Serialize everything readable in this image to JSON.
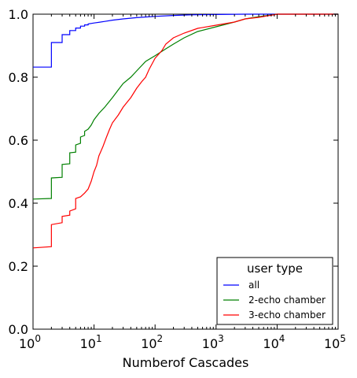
{
  "chart_data": {
    "type": "line",
    "step": true,
    "xscale": "log",
    "xlim": [
      1,
      100000
    ],
    "ylim": [
      0.0,
      1.0
    ],
    "xlabel": "Numberof Cascades",
    "ylabel": "",
    "grid": false,
    "x_ticks": [
      {
        "value": 1,
        "base": "10",
        "exp": "0"
      },
      {
        "value": 10,
        "base": "10",
        "exp": "1"
      },
      {
        "value": 100,
        "base": "10",
        "exp": "2"
      },
      {
        "value": 1000,
        "base": "10",
        "exp": "3"
      },
      {
        "value": 10000,
        "base": "10",
        "exp": "4"
      },
      {
        "value": 100000,
        "base": "10",
        "exp": "5"
      }
    ],
    "y_ticks": [
      {
        "value": 0.0,
        "label": "0.0"
      },
      {
        "value": 0.2,
        "label": "0.2"
      },
      {
        "value": 0.4,
        "label": "0.4"
      },
      {
        "value": 0.6,
        "label": "0.6"
      },
      {
        "value": 0.8,
        "label": "0.8"
      },
      {
        "value": 1.0,
        "label": "1.0"
      }
    ],
    "legend": {
      "title": "user type",
      "position": "lower right"
    },
    "series": [
      {
        "name": "all",
        "color": "#0000ff",
        "points": [
          [
            1,
            0.832
          ],
          [
            2,
            0.832
          ],
          [
            2,
            0.91
          ],
          [
            3,
            0.91
          ],
          [
            3,
            0.935
          ],
          [
            4,
            0.935
          ],
          [
            4,
            0.948
          ],
          [
            5,
            0.948
          ],
          [
            5,
            0.956
          ],
          [
            6,
            0.956
          ],
          [
            6,
            0.962
          ],
          [
            7,
            0.962
          ],
          [
            7,
            0.966
          ],
          [
            8,
            0.966
          ],
          [
            8,
            0.969
          ],
          [
            10,
            0.972
          ],
          [
            15,
            0.977
          ],
          [
            20,
            0.981
          ],
          [
            30,
            0.985
          ],
          [
            50,
            0.989
          ],
          [
            100,
            0.993
          ],
          [
            200,
            0.996
          ],
          [
            400,
            0.998
          ],
          [
            1000,
            0.999
          ],
          [
            3000,
            1.0
          ],
          [
            100000,
            1.0
          ]
        ]
      },
      {
        "name": "2-echo chamber",
        "color": "#008000",
        "points": [
          [
            1,
            0.413
          ],
          [
            2,
            0.415
          ],
          [
            2,
            0.48
          ],
          [
            3,
            0.482
          ],
          [
            3,
            0.523
          ],
          [
            4,
            0.525
          ],
          [
            4,
            0.56
          ],
          [
            5,
            0.562
          ],
          [
            5,
            0.585
          ],
          [
            6,
            0.59
          ],
          [
            6,
            0.61
          ],
          [
            7,
            0.615
          ],
          [
            7,
            0.628
          ],
          [
            8,
            0.635
          ],
          [
            9,
            0.648
          ],
          [
            10,
            0.665
          ],
          [
            12,
            0.685
          ],
          [
            15,
            0.705
          ],
          [
            20,
            0.735
          ],
          [
            25,
            0.76
          ],
          [
            30,
            0.78
          ],
          [
            40,
            0.8
          ],
          [
            50,
            0.82
          ],
          [
            70,
            0.85
          ],
          [
            100,
            0.868
          ],
          [
            150,
            0.89
          ],
          [
            200,
            0.905
          ],
          [
            300,
            0.925
          ],
          [
            500,
            0.945
          ],
          [
            1000,
            0.96
          ],
          [
            2000,
            0.975
          ],
          [
            3000,
            0.985
          ],
          [
            5000,
            0.992
          ],
          [
            10000,
            1.0
          ],
          [
            100000,
            1.0
          ]
        ]
      },
      {
        "name": "3-echo chamber",
        "color": "#ff0000",
        "points": [
          [
            1,
            0.258
          ],
          [
            2,
            0.262
          ],
          [
            2,
            0.332
          ],
          [
            3,
            0.338
          ],
          [
            3,
            0.358
          ],
          [
            4,
            0.362
          ],
          [
            4,
            0.375
          ],
          [
            5,
            0.382
          ],
          [
            5,
            0.415
          ],
          [
            6,
            0.42
          ],
          [
            7,
            0.432
          ],
          [
            8,
            0.445
          ],
          [
            9,
            0.47
          ],
          [
            10,
            0.5
          ],
          [
            11,
            0.52
          ],
          [
            12,
            0.55
          ],
          [
            14,
            0.58
          ],
          [
            16,
            0.61
          ],
          [
            18,
            0.635
          ],
          [
            20,
            0.655
          ],
          [
            25,
            0.68
          ],
          [
            30,
            0.705
          ],
          [
            40,
            0.735
          ],
          [
            50,
            0.765
          ],
          [
            60,
            0.785
          ],
          [
            70,
            0.8
          ],
          [
            80,
            0.825
          ],
          [
            100,
            0.86
          ],
          [
            130,
            0.885
          ],
          [
            150,
            0.905
          ],
          [
            200,
            0.925
          ],
          [
            300,
            0.94
          ],
          [
            500,
            0.955
          ],
          [
            1000,
            0.965
          ],
          [
            2000,
            0.975
          ],
          [
            3000,
            0.985
          ],
          [
            5000,
            0.99
          ],
          [
            10000,
            1.0
          ],
          [
            100000,
            1.0
          ]
        ]
      }
    ]
  }
}
